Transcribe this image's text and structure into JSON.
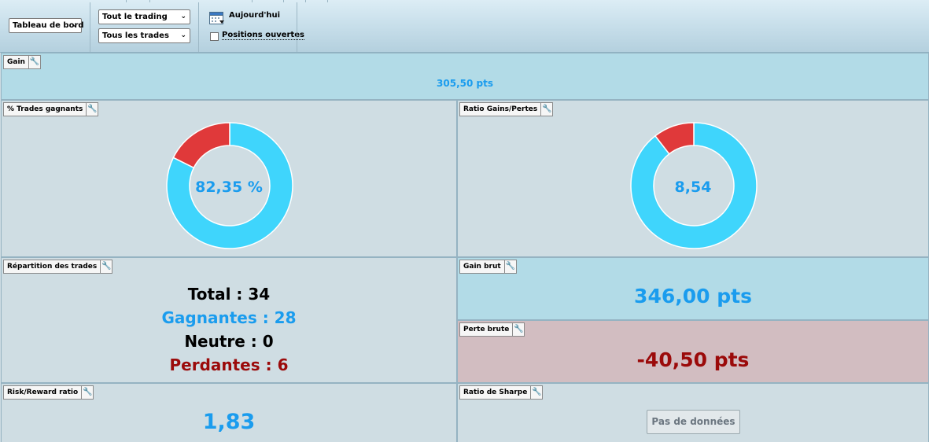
{
  "toolbar": {
    "view_select": "Tableau de bord",
    "trading_select": "Tout le trading",
    "trades_select": "Tous les trades",
    "date_label": "Aujourd'hui",
    "open_positions_label": "Positions ouvertes",
    "open_positions_checked": false
  },
  "panels": {
    "gain": {
      "title": "Gain",
      "value": "305,50 pts"
    },
    "winning_trades": {
      "title": "% Trades gagnants",
      "value": "82,35 %",
      "fraction": 0.8235
    },
    "gain_loss_ratio": {
      "title": "Ratio Gains/Pertes",
      "value": "8,54",
      "fraction": 0.895
    },
    "distribution": {
      "title": "Répartition des trades",
      "total": "Total : 34",
      "winning": "Gagnantes : 28",
      "neutral": "Neutre : 0",
      "losing": "Perdantes : 6"
    },
    "gross_gain": {
      "title": "Gain brut",
      "value": "346,00 pts"
    },
    "gross_loss": {
      "title": "Perte brute",
      "value": "-40,50 pts"
    },
    "risk_reward": {
      "title": "Risk/Reward ratio",
      "value": "1,83"
    },
    "sharpe": {
      "title": "Ratio de Sharpe",
      "value": "Pas de données"
    }
  },
  "colors": {
    "win": "#3fd5fc",
    "loss": "#e0393a",
    "blue_text": "#1a9cee",
    "red_text": "#9b0a0a"
  },
  "icons": {
    "panel_options": "wrench-icon",
    "date": "calendar-icon",
    "dropdown": "chevron-down-icon"
  }
}
